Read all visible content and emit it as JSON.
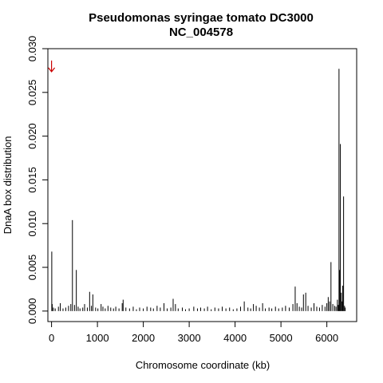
{
  "chart_data": {
    "type": "bar",
    "title": "Pseudomonas syringae tomato DC3000",
    "subtitle": "NC_004578",
    "xlabel": "Chromosome coordinate (kb)",
    "ylabel": "DnaA box distribution",
    "xlim": [
      -80,
      6650
    ],
    "ylim": [
      -0.0012,
      0.03
    ],
    "x_ticks": [
      0,
      1000,
      2000,
      3000,
      4000,
      5000,
      6000
    ],
    "x_tick_labels": [
      "0",
      "1000",
      "2000",
      "3000",
      "4000",
      "5000",
      "6000"
    ],
    "y_ticks": [
      0.0,
      0.005,
      0.01,
      0.015,
      0.02,
      0.025,
      0.03
    ],
    "y_tick_labels": [
      "0.000",
      "0.005",
      "0.010",
      "0.015",
      "0.020",
      "0.025",
      "0.030"
    ],
    "marker": {
      "x": 0,
      "y": 0.028,
      "color": "#cc0000",
      "symbol": "arrow-down"
    },
    "bar_color": "#000000",
    "grid": false,
    "series": [
      {
        "points": [
          [
            5,
            0.0068
          ],
          [
            15,
            0.0008
          ],
          [
            40,
            0.0004
          ],
          [
            80,
            0.0003
          ],
          [
            150,
            0.0005
          ],
          [
            190,
            0.0009
          ],
          [
            250,
            0.0003
          ],
          [
            310,
            0.0004
          ],
          [
            370,
            0.0006
          ],
          [
            420,
            0.0008
          ],
          [
            455,
            0.0104
          ],
          [
            500,
            0.0007
          ],
          [
            540,
            0.0047
          ],
          [
            580,
            0.0005
          ],
          [
            620,
            0.0003
          ],
          [
            680,
            0.0004
          ],
          [
            720,
            0.0008
          ],
          [
            780,
            0.0004
          ],
          [
            830,
            0.0022
          ],
          [
            870,
            0.0006
          ],
          [
            900,
            0.0019
          ],
          [
            960,
            0.0004
          ],
          [
            1010,
            0.0003
          ],
          [
            1080,
            0.0008
          ],
          [
            1120,
            0.0005
          ],
          [
            1170,
            0.0003
          ],
          [
            1230,
            0.0006
          ],
          [
            1290,
            0.0004
          ],
          [
            1350,
            0.0003
          ],
          [
            1400,
            0.0005
          ],
          [
            1470,
            0.0003
          ],
          [
            1540,
            0.0009
          ],
          [
            1560,
            0.0013
          ],
          [
            1620,
            0.0004
          ],
          [
            1700,
            0.0003
          ],
          [
            1780,
            0.0005
          ],
          [
            1850,
            0.0002
          ],
          [
            1920,
            0.0004
          ],
          [
            2000,
            0.0003
          ],
          [
            2080,
            0.0005
          ],
          [
            2160,
            0.0004
          ],
          [
            2220,
            0.0003
          ],
          [
            2300,
            0.0006
          ],
          [
            2370,
            0.0004
          ],
          [
            2450,
            0.0009
          ],
          [
            2520,
            0.0003
          ],
          [
            2600,
            0.0004
          ],
          [
            2650,
            0.0014
          ],
          [
            2700,
            0.0008
          ],
          [
            2760,
            0.0003
          ],
          [
            2850,
            0.0004
          ],
          [
            2920,
            0.0002
          ],
          [
            3000,
            0.0003
          ],
          [
            3100,
            0.0005
          ],
          [
            3180,
            0.0003
          ],
          [
            3250,
            0.0004
          ],
          [
            3330,
            0.0003
          ],
          [
            3400,
            0.0005
          ],
          [
            3480,
            0.0002
          ],
          [
            3560,
            0.0004
          ],
          [
            3640,
            0.0003
          ],
          [
            3720,
            0.0005
          ],
          [
            3800,
            0.0003
          ],
          [
            3880,
            0.0004
          ],
          [
            3960,
            0.0002
          ],
          [
            4040,
            0.0003
          ],
          [
            4120,
            0.0005
          ],
          [
            4200,
            0.0011
          ],
          [
            4280,
            0.0004
          ],
          [
            4340,
            0.0003
          ],
          [
            4400,
            0.0008
          ],
          [
            4460,
            0.0006
          ],
          [
            4530,
            0.0004
          ],
          [
            4600,
            0.0009
          ],
          [
            4660,
            0.0003
          ],
          [
            4740,
            0.0004
          ],
          [
            4800,
            0.0003
          ],
          [
            4880,
            0.0005
          ],
          [
            4950,
            0.0003
          ],
          [
            5030,
            0.0004
          ],
          [
            5100,
            0.0006
          ],
          [
            5180,
            0.0004
          ],
          [
            5260,
            0.0008
          ],
          [
            5310,
            0.0028
          ],
          [
            5350,
            0.0009
          ],
          [
            5400,
            0.0005
          ],
          [
            5450,
            0.0004
          ],
          [
            5490,
            0.0019
          ],
          [
            5540,
            0.0021
          ],
          [
            5590,
            0.0006
          ],
          [
            5660,
            0.0004
          ],
          [
            5720,
            0.0009
          ],
          [
            5780,
            0.0005
          ],
          [
            5840,
            0.0004
          ],
          [
            5900,
            0.0007
          ],
          [
            5960,
            0.0005
          ],
          [
            6000,
            0.0009
          ],
          [
            6030,
            0.0016
          ],
          [
            6060,
            0.0011
          ],
          [
            6090,
            0.0056
          ],
          [
            6130,
            0.0008
          ],
          [
            6170,
            0.0006
          ],
          [
            6200,
            0.0005
          ],
          [
            6230,
            0.0013
          ],
          [
            6250,
            0.0007
          ],
          [
            6265,
            0.0277
          ],
          [
            6280,
            0.0047
          ],
          [
            6295,
            0.0191
          ],
          [
            6315,
            0.0021
          ],
          [
            6330,
            0.0011
          ],
          [
            6345,
            0.0029
          ],
          [
            6365,
            0.0131
          ],
          [
            6385,
            0.0006
          ],
          [
            6400,
            0.0004
          ]
        ]
      }
    ]
  }
}
